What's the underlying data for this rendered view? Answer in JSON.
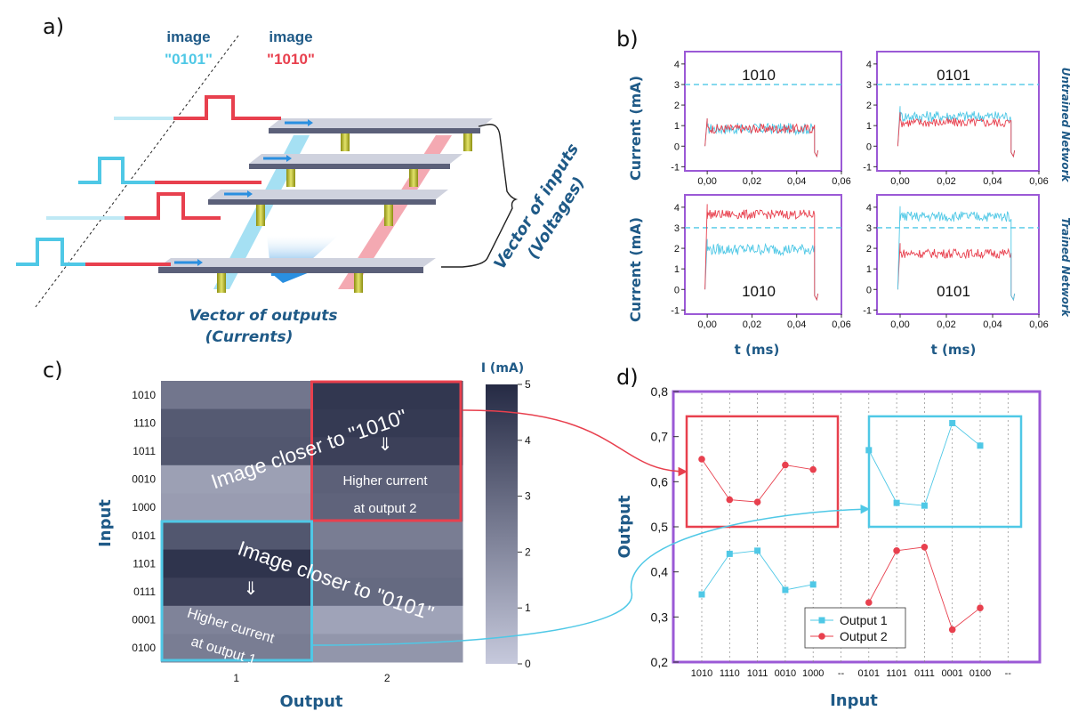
{
  "panels": {
    "a": "a)",
    "b": "b)",
    "c": "c)",
    "d": "d)"
  },
  "panel_a": {
    "image1_label": "image",
    "image1_code": "0101",
    "image2_label": "image",
    "image2_code": "1010",
    "inputs_label_1": "Vector of inputs",
    "inputs_label_2": "(Voltages)",
    "outputs_label_1": "Vector of outputs",
    "outputs_label_2": "(Currents)"
  },
  "colors": {
    "cyan": "#4fc8e6",
    "red": "#e8404e",
    "purple": "#9b59d6",
    "navy": "#1f5a87",
    "heat_dark": "#252a44",
    "heat_light": "#c6c9dc"
  },
  "chart_data": [
    {
      "type": "line",
      "panel": "b",
      "xlabel": "t (ms)",
      "ylabel": "Current (mA)",
      "xlim": [
        -0.01,
        0.06
      ],
      "ylim": [
        -1.2,
        4.6
      ],
      "xticks": [
        "0,00",
        "0,02",
        "0,04",
        "0,06"
      ],
      "yticks": [
        "-1",
        "0",
        "1",
        "2",
        "3",
        "4"
      ],
      "threshold": 3,
      "row_labels": [
        "Untrained Network",
        "Trained Network"
      ],
      "subplots": [
        {
          "label": "1010",
          "cyan_level": 0.85,
          "red_level": 0.85
        },
        {
          "label": "0101",
          "cyan_level": 1.45,
          "red_level": 1.15
        },
        {
          "label": "1010",
          "cyan_level": 1.95,
          "red_level": 3.65
        },
        {
          "label": "0101",
          "cyan_level": 3.55,
          "red_level": 1.75
        }
      ]
    },
    {
      "type": "heatmap",
      "panel": "c",
      "xlabel": "Output",
      "ylabel": "Input",
      "x": [
        "1",
        "2"
      ],
      "y": [
        "1010",
        "1110",
        "1011",
        "0010",
        "1000",
        "0101",
        "1101",
        "0111",
        "0001",
        "0100"
      ],
      "values": [
        [
          2.6,
          4.6
        ],
        [
          3.5,
          4.5
        ],
        [
          3.6,
          4.3
        ],
        [
          1.3,
          3.3
        ],
        [
          1.4,
          3.2
        ],
        [
          3.6,
          2.4
        ],
        [
          4.7,
          2.9
        ],
        [
          4.3,
          3.0
        ],
        [
          2.2,
          1.2
        ],
        [
          2.4,
          1.6
        ]
      ],
      "colorbar_label": "I (mA)",
      "colorbar_ticks": [
        "0",
        "1",
        "2",
        "3",
        "4",
        "5"
      ],
      "zlim": [
        0,
        5
      ],
      "annotations": {
        "top_text": "Image closer to \"1010\"",
        "top_sub_1": "Higher current",
        "top_sub_2": "at output 2",
        "bottom_text": "Image closer to \"0101\"",
        "bottom_sub_1": "Higher current",
        "bottom_sub_2": "at output 1",
        "arrow": "⇓"
      }
    },
    {
      "type": "line",
      "panel": "d",
      "xlabel": "Input",
      "ylabel": "Output",
      "categories": [
        "1010",
        "1110",
        "1011",
        "0010",
        "1000",
        "--",
        "0101",
        "1101",
        "0111",
        "0001",
        "0100",
        "--"
      ],
      "ylim": [
        0.2,
        0.8
      ],
      "yticks": [
        "0,2",
        "0,3",
        "0,4",
        "0,5",
        "0,6",
        "0,7",
        "0,8"
      ],
      "series": [
        {
          "name": "Output 1",
          "color": "#4fc8e6",
          "marker": "square",
          "groups": [
            {
              "start": 0,
              "values": [
                0.35,
                0.44,
                0.447,
                0.36,
                0.372
              ]
            },
            {
              "start": 6,
              "values": [
                0.67,
                0.553,
                0.547,
                0.73,
                0.68
              ]
            }
          ]
        },
        {
          "name": "Output 2",
          "color": "#e8404e",
          "marker": "circle",
          "groups": [
            {
              "start": 0,
              "values": [
                0.65,
                0.56,
                0.555,
                0.637,
                0.627
              ]
            },
            {
              "start": 6,
              "values": [
                0.332,
                0.447,
                0.455,
                0.272,
                0.32
              ]
            }
          ]
        }
      ]
    }
  ]
}
